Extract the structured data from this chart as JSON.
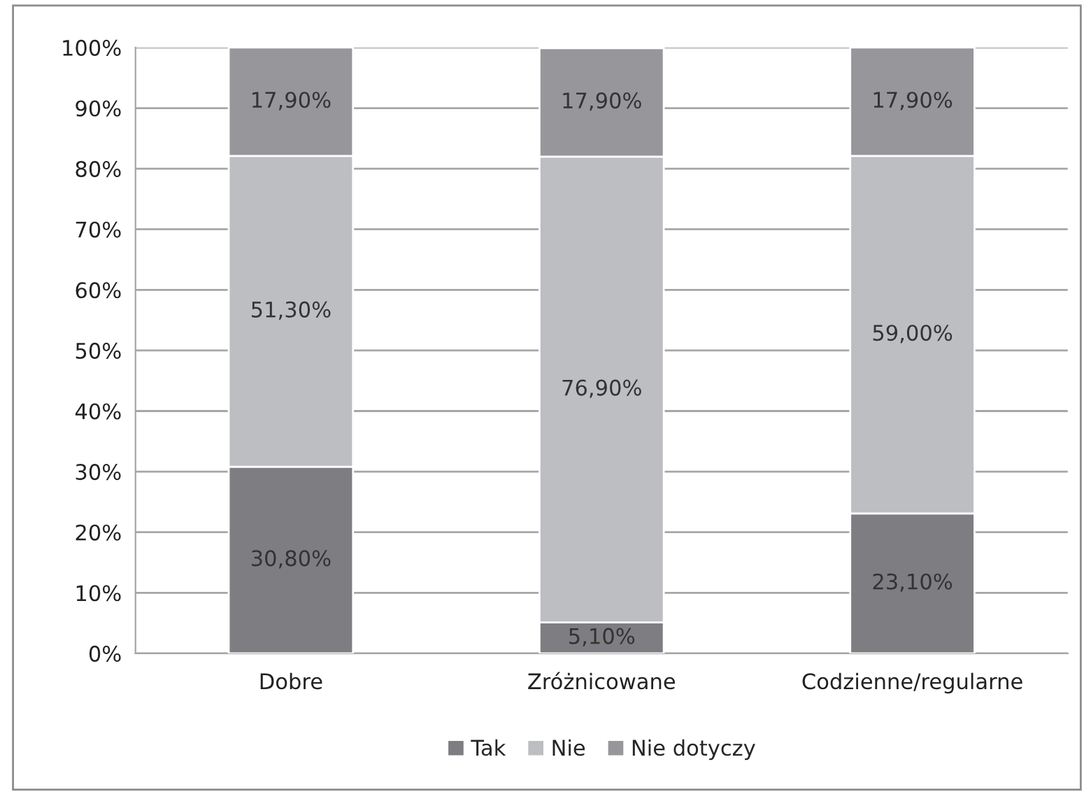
{
  "chart_data": {
    "type": "bar",
    "stacked": true,
    "categories": [
      "Dobre",
      "Zróżnicowane",
      "Codzienne/regularne"
    ],
    "series": [
      {
        "name": "Tak",
        "color": "#7e7e82",
        "values": [
          30.8,
          5.1,
          23.1
        ],
        "value_labels": [
          "30,80%",
          "5,10%",
          "23,10%"
        ]
      },
      {
        "name": "Nie",
        "color": "#bdbec2",
        "values": [
          51.3,
          76.9,
          59.0
        ],
        "value_labels": [
          "51,30%",
          "76,90%",
          "59,00%"
        ]
      },
      {
        "name": "Nie dotyczy",
        "color": "#97979b",
        "values": [
          17.9,
          17.9,
          17.9
        ],
        "value_labels": [
          "17,90%",
          "17,90%",
          "17,90%"
        ]
      }
    ],
    "ylim": [
      0,
      100
    ],
    "yticks": [
      {
        "value": 0,
        "label": "0%"
      },
      {
        "value": 10,
        "label": "10%"
      },
      {
        "value": 20,
        "label": "20%"
      },
      {
        "value": 30,
        "label": "30%"
      },
      {
        "value": 40,
        "label": "40%"
      },
      {
        "value": 50,
        "label": "50%"
      },
      {
        "value": 60,
        "label": "60%"
      },
      {
        "value": 70,
        "label": "70%"
      },
      {
        "value": 80,
        "label": "80%"
      },
      {
        "value": 90,
        "label": "90%"
      },
      {
        "value": 100,
        "label": "100%"
      }
    ],
    "grid": "y",
    "legend": "bottom"
  }
}
